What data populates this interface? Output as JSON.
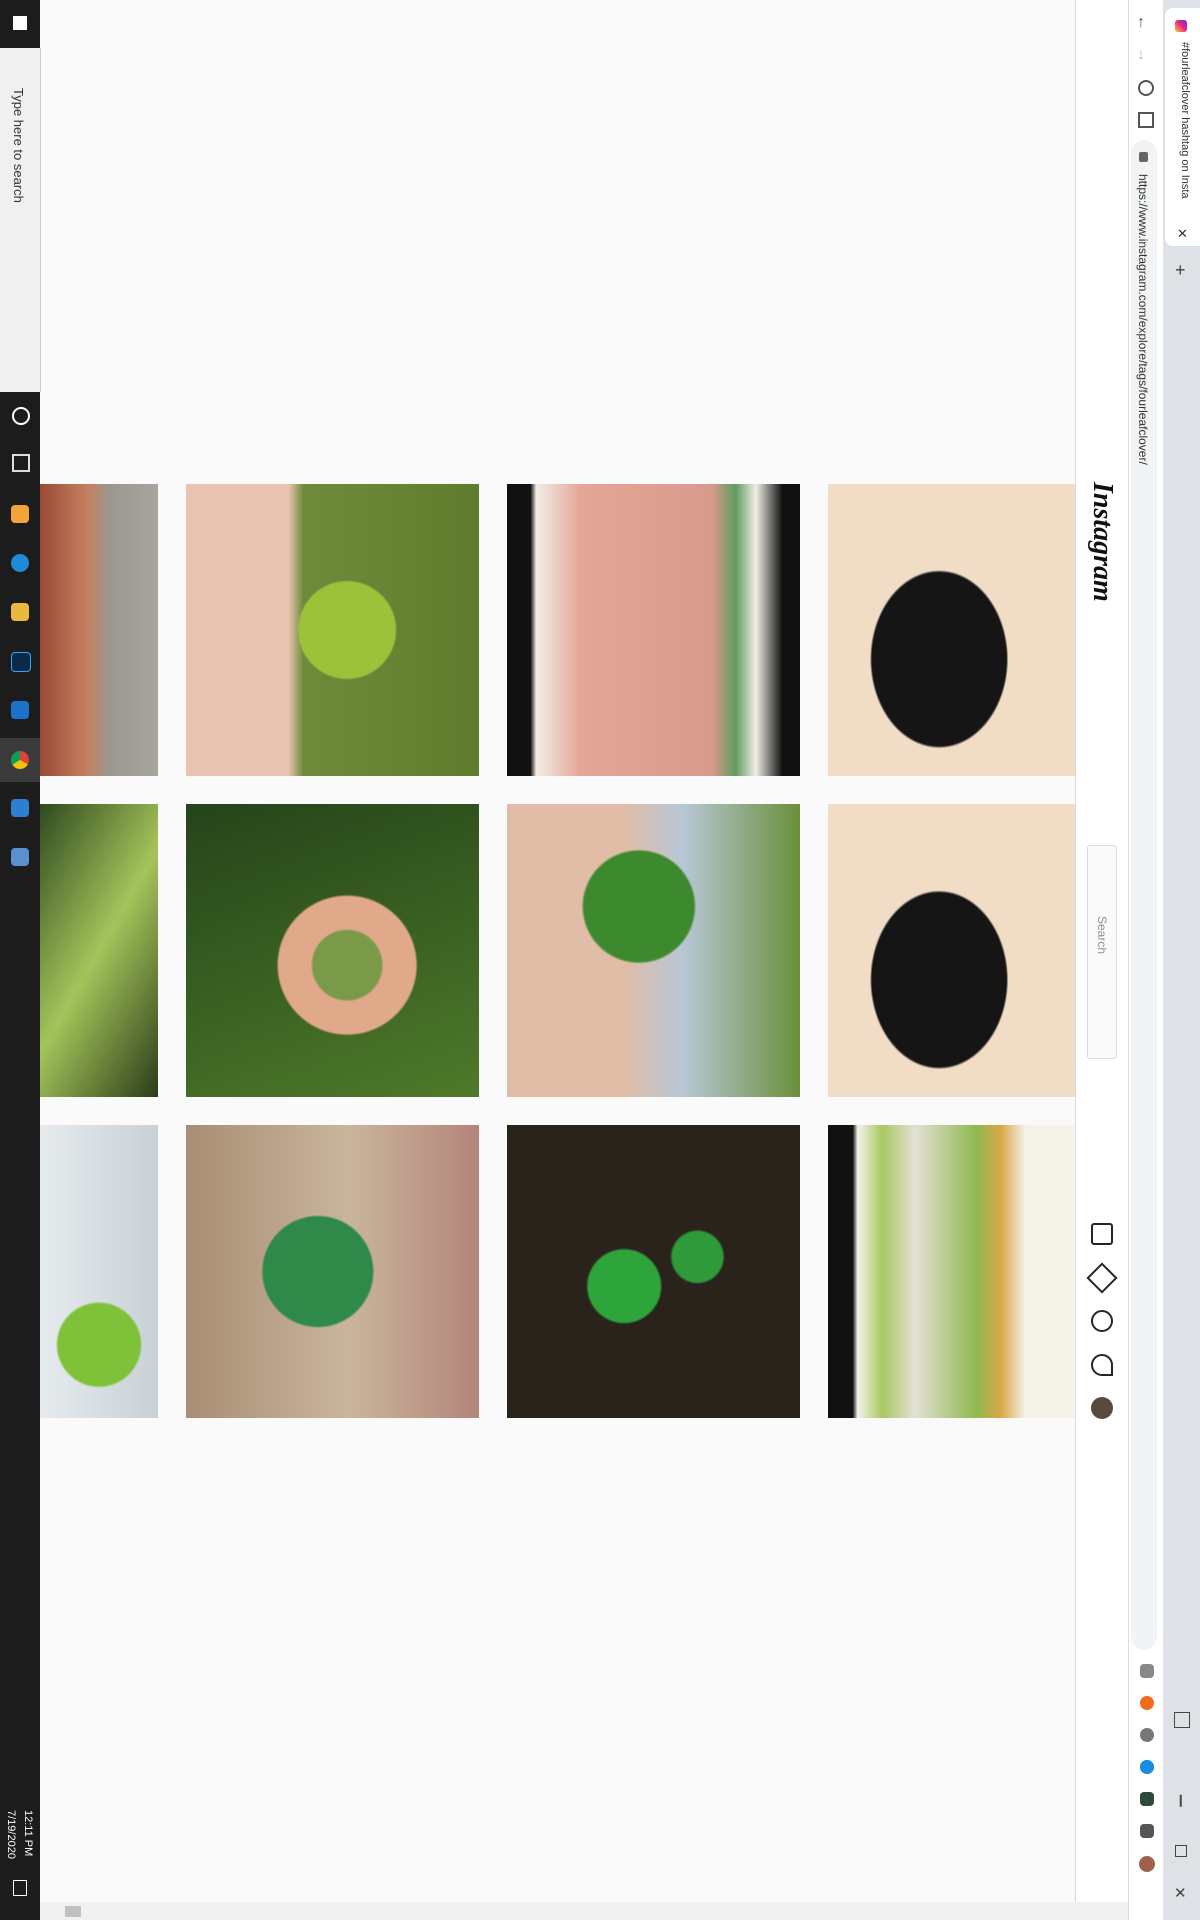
{
  "taskbar": {
    "search_placeholder": "Type here to search",
    "time": "12:11 PM",
    "date": "7/19/2020"
  },
  "browser": {
    "tab_title": "#fourleafclover hashtag on Insta",
    "url": "https://www.instagram.com/explore/tags/fourleafclover/"
  },
  "page": {
    "logo": "Instagram",
    "search_placeholder": "Search"
  }
}
